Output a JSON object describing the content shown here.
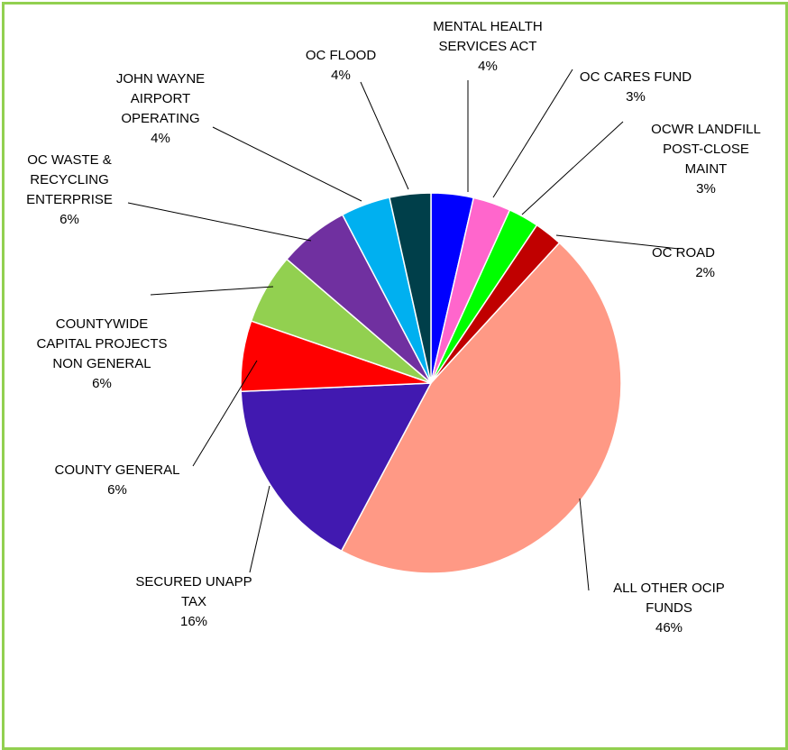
{
  "chart_data": {
    "type": "pie",
    "title": "",
    "start_angle_deg": 0,
    "direction": "clockwise",
    "slices": [
      {
        "label_lines": [
          "MENTAL HEALTH",
          "SERVICES ACT"
        ],
        "value": 3.6,
        "display": "4%",
        "color": "#0000ff"
      },
      {
        "label_lines": [
          "OC CARES FUND"
        ],
        "value": 3.2,
        "display": "3%",
        "color": "#ff66cc"
      },
      {
        "label_lines": [
          "OCWR LANDFILL",
          "POST-CLOSE",
          "MAINT"
        ],
        "value": 2.6,
        "display": "3%",
        "color": "#00ff00"
      },
      {
        "label_lines": [
          "OC ROAD"
        ],
        "value": 2.4,
        "display": "2%",
        "color": "#c00000"
      },
      {
        "label_lines": [
          "ALL OTHER OCIP",
          "FUNDS"
        ],
        "value": 46.0,
        "display": "46%",
        "color": "#ff9985"
      },
      {
        "label_lines": [
          "SECURED UNAPP",
          "TAX"
        ],
        "value": 16.5,
        "display": "16%",
        "color": "#4119b0"
      },
      {
        "label_lines": [
          "COUNTY GENERAL"
        ],
        "value": 6.0,
        "display": "6%",
        "color": "#ff0000"
      },
      {
        "label_lines": [
          "COUNTYWIDE",
          "CAPITAL PROJECTS",
          "NON GENERAL"
        ],
        "value": 6.0,
        "display": "6%",
        "color": "#92d050"
      },
      {
        "label_lines": [
          "OC WASTE &",
          "RECYCLING",
          "ENTERPRISE"
        ],
        "value": 6.0,
        "display": "6%",
        "color": "#7030a0"
      },
      {
        "label_lines": [
          "JOHN WAYNE",
          "AIRPORT",
          "OPERATING"
        ],
        "value": 4.2,
        "display": "4%",
        "color": "#00b0f0"
      },
      {
        "label_lines": [
          "OC FLOOD"
        ],
        "value": 3.5,
        "display": "4%",
        "color": "#003f4a"
      }
    ]
  }
}
